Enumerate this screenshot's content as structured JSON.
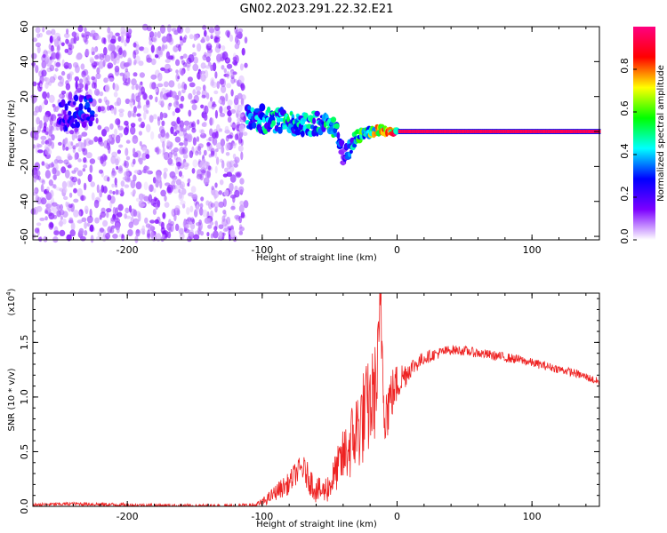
{
  "title": "GN02.2023.291.22.32.E21",
  "chart_data": [
    {
      "type": "heatmap",
      "xlabel": "Height of straight line (km)",
      "ylabel": "Frequency (Hz)",
      "xlim": [
        -270,
        150
      ],
      "ylim": [
        -62,
        60
      ],
      "x_ticks": [
        -200,
        -100,
        0,
        100
      ],
      "y_ticks": [
        -60,
        -40,
        -20,
        0,
        20,
        40,
        60
      ],
      "noise_region": {
        "x": [
          -270,
          -112
        ],
        "y": [
          -62,
          60
        ],
        "note": "scattered low-amplitude purple speckle"
      },
      "signal_band": [
        {
          "x": -250,
          "y_center": 8,
          "half_width": 8,
          "amplitude": 0.25
        },
        {
          "x": -235,
          "y_center": 12,
          "half_width": 8,
          "amplitude": 0.3
        },
        {
          "x": -105,
          "y_center": 8,
          "half_width": 7,
          "amplitude": 0.45
        },
        {
          "x": -90,
          "y_center": 6,
          "half_width": 7,
          "amplitude": 0.5
        },
        {
          "x": -75,
          "y_center": 4,
          "half_width": 6,
          "amplitude": 0.5
        },
        {
          "x": -60,
          "y_center": 5,
          "half_width": 6,
          "amplitude": 0.5
        },
        {
          "x": -45,
          "y_center": 2,
          "half_width": 5,
          "amplitude": 0.5
        },
        {
          "x": -40,
          "y_center": -15,
          "half_width": 5,
          "amplitude": 0.2
        },
        {
          "x": -30,
          "y_center": -3,
          "half_width": 3,
          "amplitude": 0.55
        },
        {
          "x": -15,
          "y_center": 1,
          "half_width": 2,
          "amplitude": 0.8
        },
        {
          "x": 0,
          "y_center": 0,
          "half_width": 1.5,
          "amplitude": 0.95
        },
        {
          "x": 150,
          "y_center": 0,
          "half_width": 1.5,
          "amplitude": 0.95
        }
      ],
      "colorbar": {
        "label": "Normalized spectral amplitude",
        "range": [
          0,
          1
        ],
        "ticks": [
          "0.0",
          "0.2",
          "0.4",
          "0.6",
          "0.8"
        ],
        "tick_values": [
          0,
          0.2,
          0.4,
          0.6,
          0.8
        ],
        "colors": [
          "#ffffff",
          "#7c00ff",
          "#0000ff",
          "#00ffff",
          "#00ff00",
          "#ffff00",
          "#ff0000",
          "#ff0080"
        ]
      }
    },
    {
      "type": "line",
      "xlabel": "Height of straight line (km)",
      "ylabel": "SNR (10 * v/v)",
      "y_scale_label": "(x10",
      "y_scale_exp": "4",
      "y_scale_close": ")",
      "xlim": [
        -270,
        150
      ],
      "ylim": [
        0,
        1.95
      ],
      "x_ticks": [
        -200,
        -100,
        0,
        100
      ],
      "y_ticks": [
        0,
        0.5,
        1.0,
        1.5
      ],
      "y_tick_labels": [
        "0.0",
        "0.5",
        "1.0",
        "1.5"
      ],
      "color": "#ee2222",
      "envelope": {
        "x": [
          -270,
          -240,
          -200,
          -150,
          -120,
          -105,
          -100,
          -95,
          -88,
          -80,
          -75,
          -70,
          -65,
          -60,
          -55,
          -50,
          -45,
          -40,
          -35,
          -30,
          -25,
          -20,
          -15,
          -12,
          -10,
          -8,
          -5,
          0,
          10,
          20,
          30,
          40,
          50,
          60,
          70,
          80,
          90,
          100,
          110,
          120,
          130,
          140,
          150
        ],
        "y": [
          0.02,
          0.03,
          0.02,
          0.01,
          0.01,
          0.02,
          0.05,
          0.1,
          0.18,
          0.25,
          0.35,
          0.4,
          0.3,
          0.2,
          0.18,
          0.25,
          0.4,
          0.55,
          0.7,
          0.85,
          1.0,
          1.1,
          1.3,
          1.95,
          1.2,
          1.0,
          1.1,
          1.2,
          1.3,
          1.38,
          1.42,
          1.45,
          1.44,
          1.42,
          1.4,
          1.38,
          1.36,
          1.33,
          1.3,
          1.27,
          1.24,
          1.2,
          1.15
        ]
      },
      "noise": {
        "x": [
          -270,
          -105,
          -100,
          -85,
          -75,
          -65,
          -55,
          -45,
          -35,
          -25,
          -15,
          -10,
          -5,
          0,
          10,
          20,
          40,
          80,
          120,
          150
        ],
        "amplitude": [
          0.02,
          0.03,
          0.05,
          0.12,
          0.15,
          0.18,
          0.15,
          0.25,
          0.45,
          0.6,
          0.6,
          0.5,
          0.35,
          0.25,
          0.12,
          0.08,
          0.06,
          0.06,
          0.05,
          0.05
        ]
      },
      "spike": {
        "x": -12,
        "y": 1.95
      }
    }
  ]
}
